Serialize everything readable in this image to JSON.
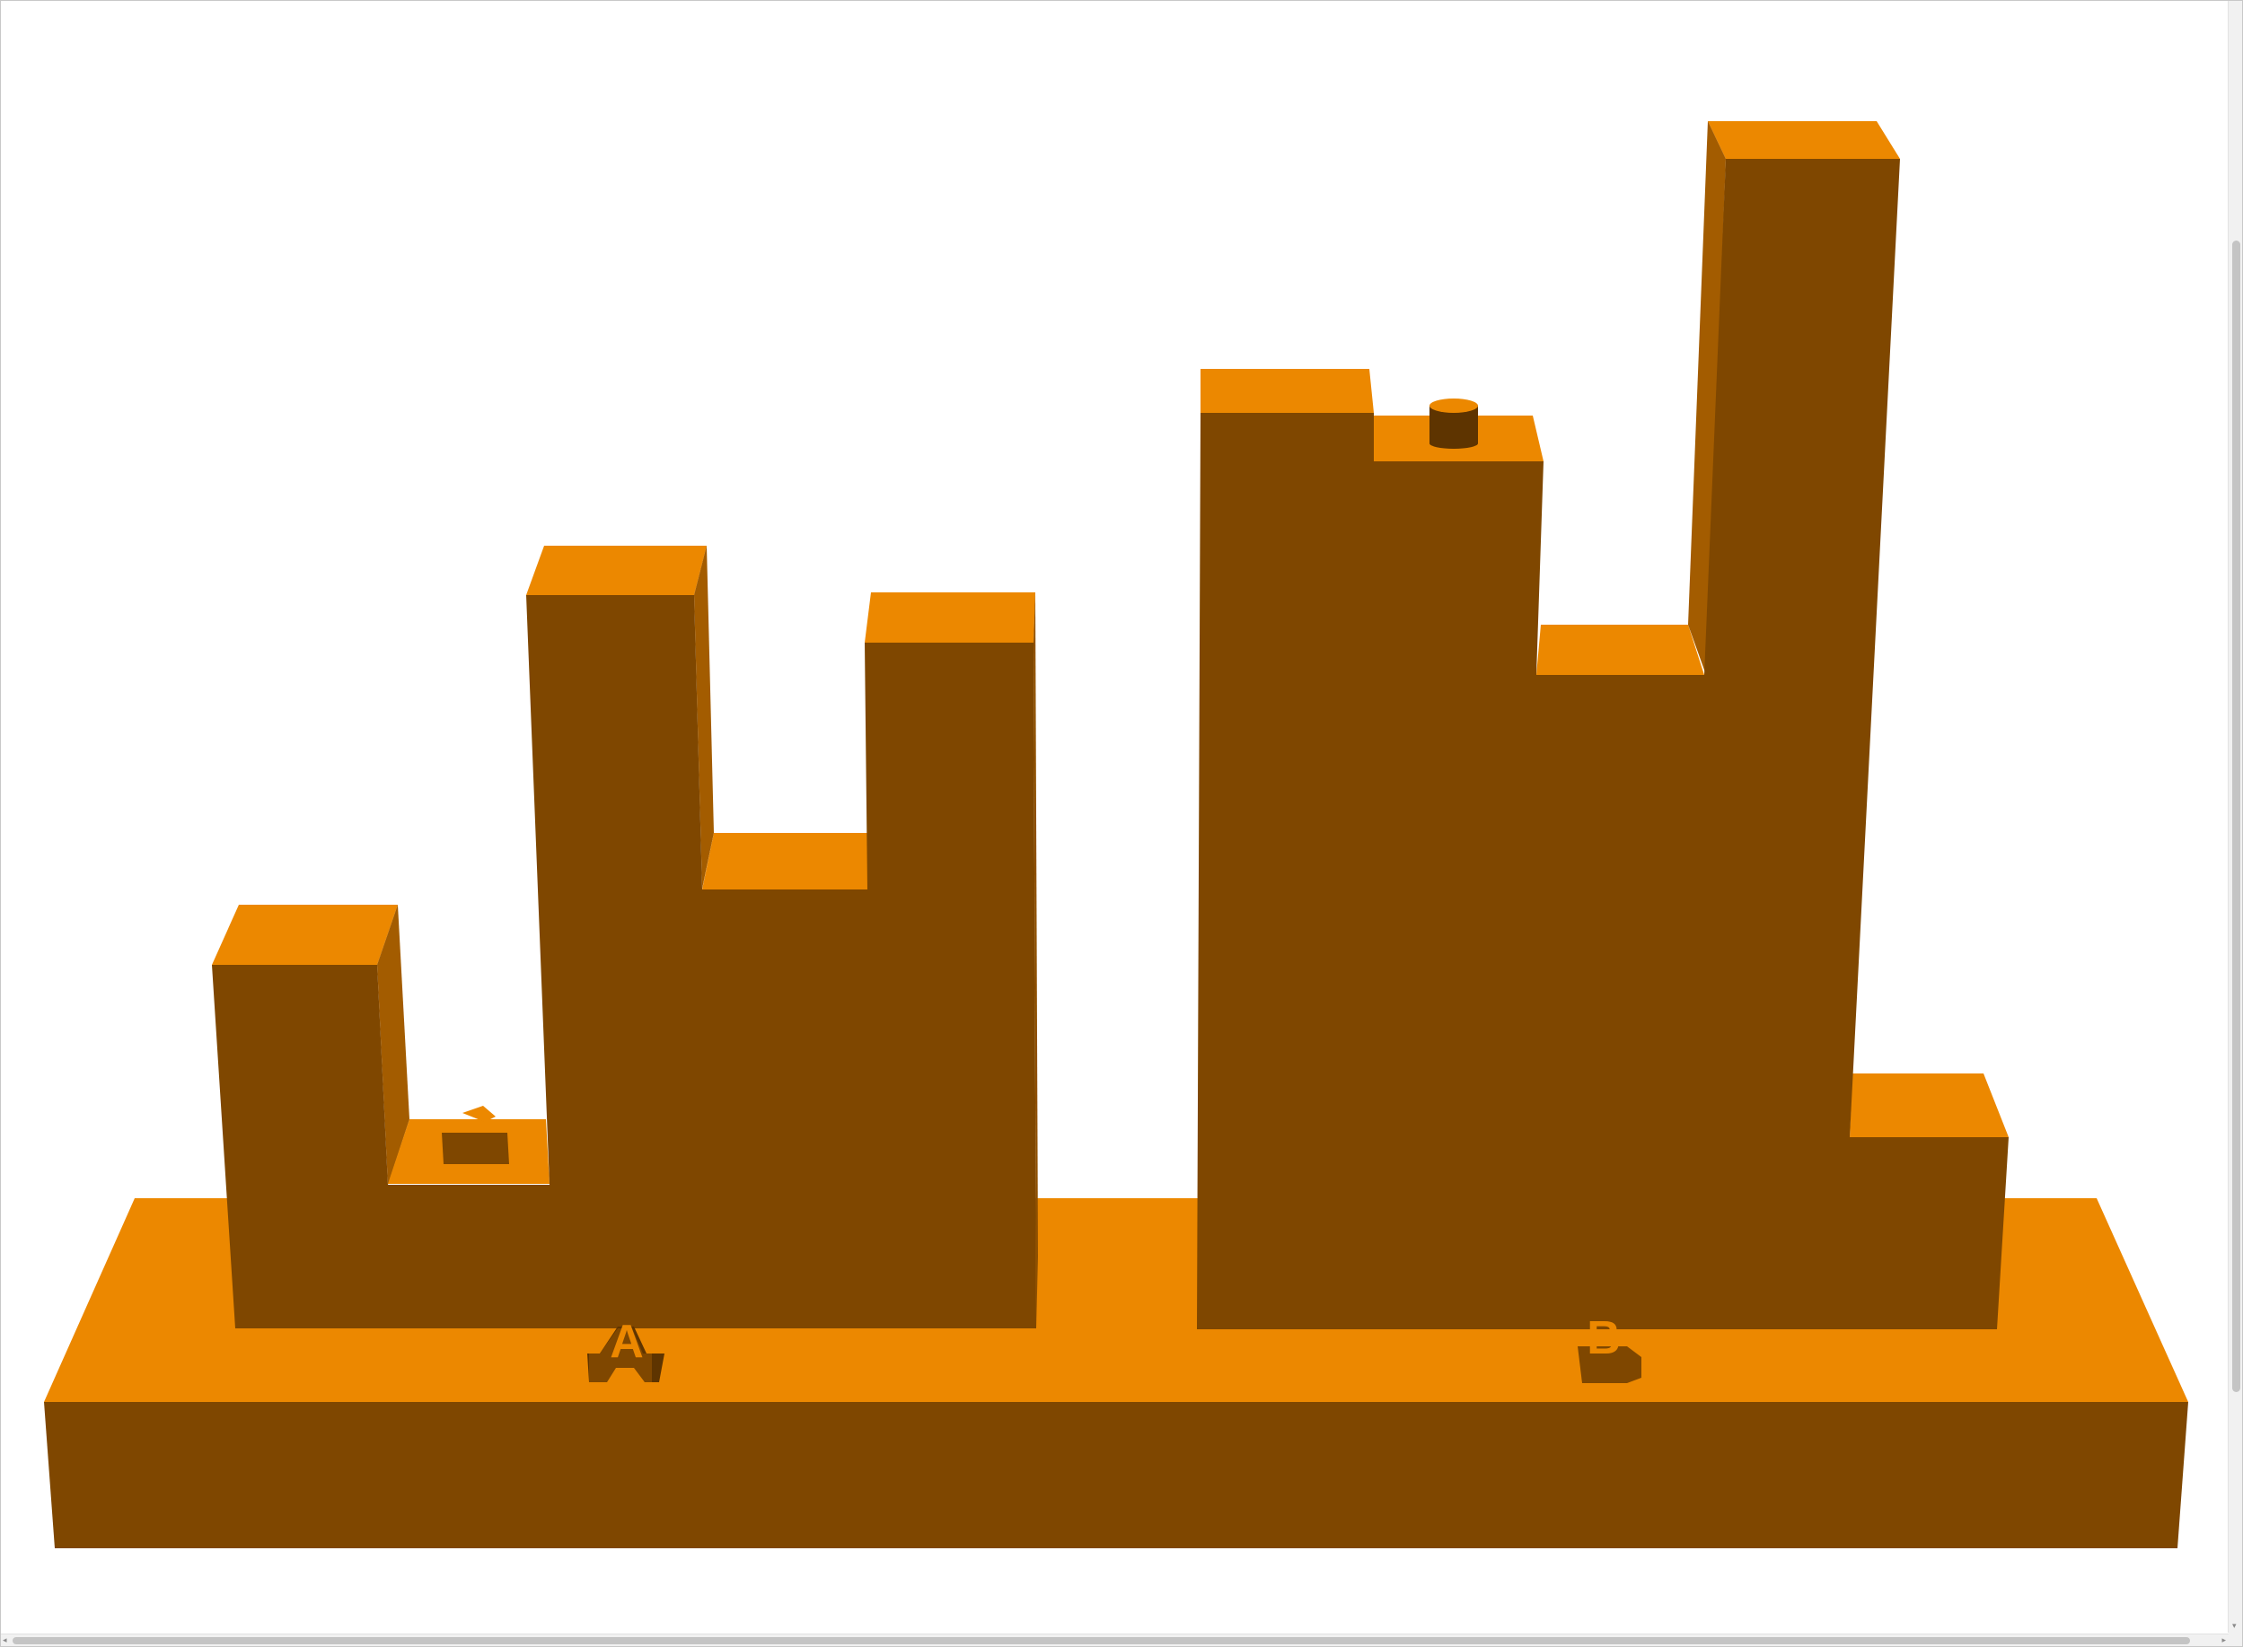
{
  "scene": {
    "part_labels": [
      "A",
      "B"
    ],
    "colors": {
      "background": "#ffffff",
      "front_face": "#7f4700",
      "top_face": "#ec8800",
      "side_face": "#a35c00",
      "dark_face": "#5e3400",
      "label_face": "#ec8800"
    }
  },
  "scrollbars": {
    "vertical_arrow_down": "▾",
    "horizontal_arrow_left": "◂",
    "horizontal_arrow_right": "▸"
  }
}
